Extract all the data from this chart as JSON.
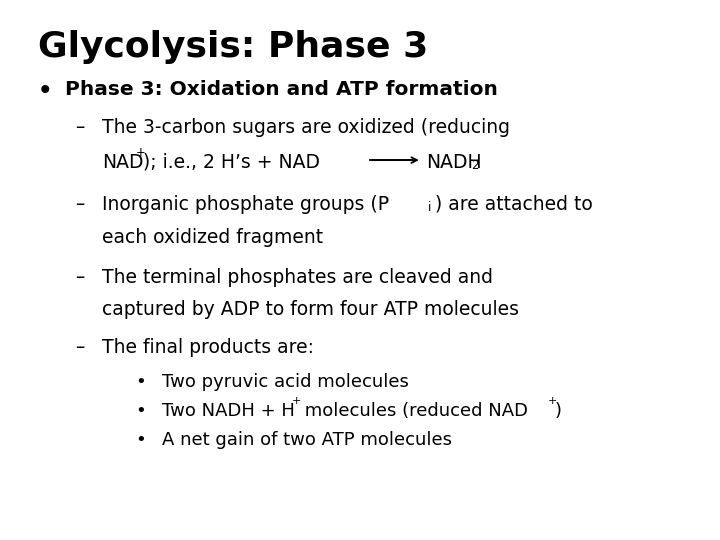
{
  "title": "Glycolysis: Phase 3",
  "background_color": "#ffffff",
  "text_color": "#000000",
  "title_fontsize": 26,
  "body_fontsize": 14.5,
  "sub_fontsize": 13.5,
  "subsub_fontsize": 13.0,
  "bullet1_bold": "Phase 3: Oxidation and ATP formation",
  "sub1_line1": "The 3-carbon sugars are oxidized (reducing",
  "sub2_line2": "each oxidized fragment",
  "sub3_line1": "The terminal phosphates are cleaved and",
  "sub3_line2": "captured by ADP to form four ATP molecules",
  "sub4_line1": "The final products are:",
  "bullet3a": "Two pyruvic acid molecules",
  "bullet3c": "A net gain of two ATP molecules",
  "font_family": "DejaVu Sans"
}
